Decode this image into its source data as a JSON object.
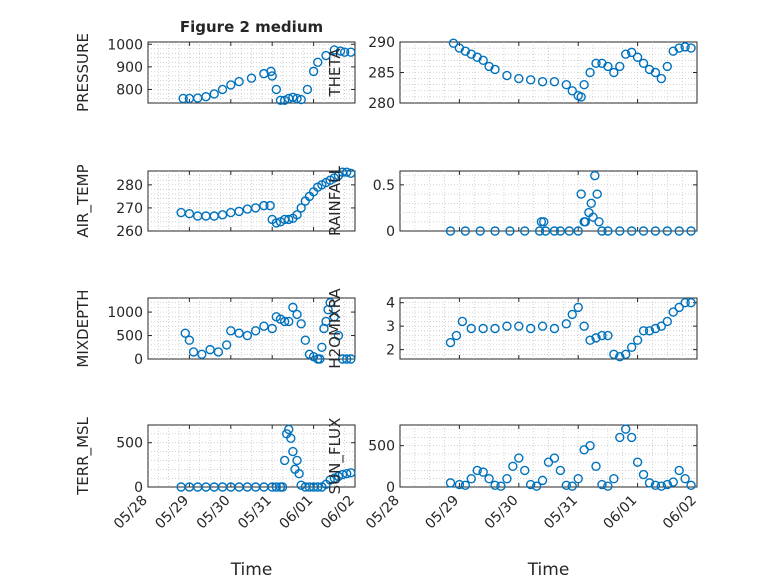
{
  "figure": {
    "title": "Figure 2 medium",
    "marker_color": "#0072BD",
    "x_ticks": [
      "05/28",
      "05/29",
      "05/30",
      "05/31",
      "06/01",
      "06/02"
    ]
  },
  "chart_data": [
    {
      "type": "scatter",
      "name": "pressure",
      "ylabel": "PRESSURE",
      "xlabel": "",
      "title": "Figure 2 medium",
      "xlim": [
        "05/28",
        "06/02"
      ],
      "ylim": [
        740,
        1010
      ],
      "yticks": [
        800,
        900,
        1000
      ],
      "yticklabels": [
        "800",
        "900",
        "1000"
      ],
      "x": [
        28.85,
        29.0,
        29.2,
        29.4,
        29.6,
        29.8,
        30.0,
        30.2,
        30.5,
        30.8,
        30.97,
        31.0,
        31.1,
        31.2,
        31.3,
        31.4,
        31.5,
        31.6,
        31.7,
        31.85,
        32.0,
        32.1,
        32.3,
        32.5,
        32.65,
        32.75,
        32.9
      ],
      "y": [
        760,
        760,
        762,
        768,
        780,
        800,
        820,
        835,
        850,
        870,
        880,
        860,
        800,
        752,
        752,
        760,
        765,
        760,
        755,
        800,
        880,
        920,
        950,
        975,
        970,
        965,
        965
      ]
    },
    {
      "type": "scatter",
      "name": "theta",
      "ylabel": "THETA",
      "xlabel": "",
      "xlim": [
        "05/28",
        "06/02"
      ],
      "ylim": [
        280,
        290
      ],
      "yticks": [
        280,
        285,
        290
      ],
      "yticklabels": [
        "280",
        "285",
        "290"
      ],
      "x": [
        28.9,
        29.0,
        29.1,
        29.2,
        29.3,
        29.4,
        29.5,
        29.6,
        29.8,
        30.0,
        30.2,
        30.4,
        30.6,
        30.8,
        30.9,
        31.0,
        31.05,
        31.1,
        31.2,
        31.3,
        31.4,
        31.5,
        31.6,
        31.7,
        31.8,
        31.9,
        32.0,
        32.1,
        32.2,
        32.3,
        32.4,
        32.5,
        32.6,
        32.7,
        32.8,
        32.9
      ],
      "y": [
        289.8,
        289,
        288.5,
        288,
        287.5,
        287,
        286,
        285.5,
        284.5,
        284,
        283.8,
        283.5,
        283.5,
        283,
        282,
        281.2,
        281,
        283,
        285,
        286.5,
        286.5,
        286,
        285,
        286,
        288,
        288.3,
        287.5,
        286.5,
        285.5,
        285,
        284,
        286,
        288.5,
        289,
        289.2,
        289
      ]
    },
    {
      "type": "scatter",
      "name": "air_temp",
      "ylabel": "AIR_TEMP",
      "xlabel": "",
      "xlim": [
        "05/28",
        "06/02"
      ],
      "ylim": [
        260,
        286
      ],
      "yticks": [
        260,
        270,
        280
      ],
      "yticklabels": [
        "260",
        "270",
        "280"
      ],
      "x": [
        28.8,
        29.0,
        29.2,
        29.4,
        29.6,
        29.8,
        30.0,
        30.2,
        30.4,
        30.6,
        30.8,
        30.95,
        31.0,
        31.1,
        31.2,
        31.3,
        31.4,
        31.5,
        31.6,
        31.7,
        31.8,
        31.9,
        32.0,
        32.1,
        32.2,
        32.3,
        32.4,
        32.5,
        32.6,
        32.7,
        32.8,
        32.9
      ],
      "y": [
        268,
        267.5,
        266.5,
        266.5,
        266.5,
        267,
        268,
        268.5,
        269.5,
        270,
        271,
        271,
        265,
        263.5,
        264,
        265,
        265,
        265.5,
        267,
        270,
        273,
        275,
        277,
        279,
        280,
        281,
        282,
        283,
        284,
        285.5,
        285.5,
        285
      ]
    },
    {
      "type": "scatter",
      "name": "rainfall",
      "ylabel": "RAINFALL",
      "xlabel": "",
      "xlim": [
        "05/28",
        "06/02"
      ],
      "ylim": [
        0,
        0.65
      ],
      "yticks": [
        0,
        0.5
      ],
      "yticklabels": [
        "0",
        "0.5"
      ],
      "x": [
        28.85,
        29.1,
        29.35,
        29.6,
        29.85,
        30.1,
        30.35,
        30.45,
        30.6,
        30.7,
        30.85,
        31.0,
        31.05,
        31.1,
        31.12,
        31.18,
        31.22,
        31.25,
        31.28,
        31.32,
        31.35,
        31.4,
        31.5,
        31.7,
        31.9,
        32.1,
        32.3,
        32.5,
        32.7,
        32.9,
        30.38,
        30.42
      ],
      "y": [
        0,
        0,
        0,
        0,
        0,
        0,
        0,
        0,
        0,
        0,
        0,
        0,
        0.4,
        0.1,
        0.1,
        0.2,
        0.3,
        0.15,
        0.6,
        0.4,
        0.1,
        0,
        0,
        0,
        0,
        0,
        0,
        0,
        0,
        0,
        0.1,
        0.1
      ]
    },
    {
      "type": "scatter",
      "name": "mixdepth",
      "ylabel": "MIXDEPTH",
      "xlabel": "",
      "xlim": [
        "05/28",
        "06/02"
      ],
      "ylim": [
        0,
        1300
      ],
      "yticks": [
        0,
        500,
        1000
      ],
      "yticklabels": [
        "0",
        "500",
        "1000"
      ],
      "x": [
        28.9,
        29.0,
        29.1,
        29.3,
        29.5,
        29.7,
        29.9,
        30.0,
        30.2,
        30.4,
        30.6,
        30.8,
        31.0,
        31.1,
        31.2,
        31.3,
        31.4,
        31.5,
        31.6,
        31.7,
        31.8,
        31.9,
        32.0,
        32.1,
        32.15,
        32.2,
        32.25,
        32.3,
        32.35,
        32.4,
        32.5,
        32.6,
        32.7,
        32.8,
        32.9
      ],
      "y": [
        550,
        400,
        150,
        100,
        200,
        150,
        300,
        600,
        550,
        500,
        600,
        700,
        650,
        900,
        850,
        800,
        800,
        1100,
        950,
        750,
        400,
        100,
        50,
        0,
        0,
        250,
        650,
        800,
        1050,
        1200,
        900,
        500,
        0,
        0,
        0
      ]
    },
    {
      "type": "scatter",
      "name": "h2omixra",
      "ylabel": "H2OMIXRA",
      "xlabel": "",
      "xlim": [
        "05/28",
        "06/02"
      ],
      "ylim": [
        1.6,
        4.2
      ],
      "yticks": [
        2,
        3,
        4
      ],
      "yticklabels": [
        "2",
        "3",
        "4"
      ],
      "x": [
        28.85,
        28.95,
        29.05,
        29.2,
        29.4,
        29.6,
        29.8,
        30.0,
        30.2,
        30.4,
        30.6,
        30.8,
        30.9,
        31.0,
        31.1,
        31.2,
        31.3,
        31.4,
        31.5,
        31.6,
        31.7,
        31.8,
        31.9,
        32.0,
        32.1,
        32.2,
        32.3,
        32.4,
        32.5,
        32.6,
        32.7,
        32.8,
        32.9
      ],
      "y": [
        2.3,
        2.6,
        3.2,
        2.9,
        2.9,
        2.9,
        3.0,
        3.0,
        2.9,
        3.0,
        2.9,
        3.1,
        3.5,
        3.8,
        3.0,
        2.4,
        2.5,
        2.6,
        2.6,
        1.8,
        1.7,
        1.8,
        2.1,
        2.4,
        2.8,
        2.8,
        2.9,
        3.0,
        3.2,
        3.6,
        3.8,
        4.0,
        4.0
      ]
    },
    {
      "type": "scatter",
      "name": "terr_msl",
      "ylabel": "TERR_MSL",
      "xlabel": "Time",
      "xlim": [
        "05/28",
        "06/02"
      ],
      "ylim": [
        0,
        700
      ],
      "yticks": [
        0,
        500
      ],
      "yticklabels": [
        "0",
        "500"
      ],
      "x": [
        28.8,
        29.0,
        29.2,
        29.4,
        29.6,
        29.8,
        30.0,
        30.2,
        30.4,
        30.6,
        30.8,
        31.0,
        31.1,
        31.2,
        31.25,
        31.3,
        31.35,
        31.4,
        31.45,
        31.5,
        31.55,
        31.6,
        31.7,
        31.8,
        31.9,
        32.0,
        32.1,
        32.2,
        32.3,
        32.4,
        32.5,
        32.6,
        32.7,
        32.8,
        32.9,
        31.65
      ],
      "y": [
        0,
        0,
        0,
        0,
        0,
        0,
        0,
        0,
        0,
        0,
        0,
        0,
        0,
        0,
        0,
        300,
        600,
        650,
        550,
        400,
        200,
        300,
        20,
        0,
        0,
        0,
        0,
        0,
        30,
        80,
        100,
        120,
        140,
        150,
        160,
        150
      ]
    },
    {
      "type": "scatter",
      "name": "sun_flux",
      "ylabel": "SUN_FLUX",
      "xlabel": "Time",
      "xlim": [
        "05/28",
        "06/02"
      ],
      "ylim": [
        0,
        750
      ],
      "yticks": [
        0,
        500
      ],
      "yticklabels": [
        "0",
        "500"
      ],
      "x": [
        28.85,
        29.0,
        29.1,
        29.2,
        29.3,
        29.4,
        29.5,
        29.6,
        29.7,
        29.8,
        29.9,
        30.0,
        30.1,
        30.2,
        30.3,
        30.4,
        30.5,
        30.6,
        30.7,
        30.8,
        30.9,
        31.0,
        31.1,
        31.2,
        31.3,
        31.4,
        31.5,
        31.6,
        31.7,
        31.8,
        31.9,
        32.0,
        32.1,
        32.2,
        32.3,
        32.4,
        32.5,
        32.6,
        32.7,
        32.8,
        32.9
      ],
      "y": [
        50,
        30,
        20,
        100,
        200,
        180,
        100,
        20,
        10,
        100,
        250,
        350,
        200,
        30,
        10,
        80,
        300,
        350,
        200,
        20,
        10,
        100,
        450,
        500,
        250,
        30,
        10,
        100,
        600,
        700,
        600,
        300,
        150,
        50,
        20,
        10,
        30,
        60,
        200,
        100,
        20
      ]
    }
  ]
}
